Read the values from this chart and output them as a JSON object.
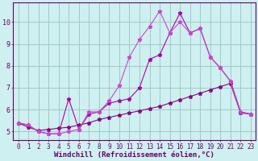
{
  "xlabel": "Windchill (Refroidissement éolien,°C)",
  "bg_color": "#cff0f0",
  "grid_color": "#a0c8c8",
  "line_color_bright": "#cc44cc",
  "line_color_mid": "#aa00aa",
  "line_color_dark": "#880088",
  "xlim": [
    -0.5,
    23.5
  ],
  "ylim": [
    4.6,
    10.9
  ],
  "xticks": [
    0,
    1,
    2,
    3,
    4,
    5,
    6,
    7,
    8,
    9,
    10,
    11,
    12,
    13,
    14,
    15,
    16,
    17,
    18,
    19,
    20,
    21,
    22,
    23
  ],
  "yticks": [
    5,
    6,
    7,
    8,
    9,
    10
  ],
  "series_jagged_x": [
    0,
    1,
    2,
    3,
    4,
    5,
    6,
    7,
    8,
    9,
    10,
    11,
    12,
    13,
    14,
    15,
    16,
    17,
    18,
    19,
    20,
    21,
    22,
    23
  ],
  "series_jagged_y": [
    5.4,
    5.3,
    5.0,
    4.9,
    4.9,
    6.5,
    5.1,
    5.8,
    5.9,
    6.3,
    6.4,
    6.5,
    7.0,
    8.3,
    8.5,
    9.5,
    10.4,
    9.5,
    9.7,
    8.4,
    7.9,
    7.3,
    5.9,
    5.8
  ],
  "series_upper_x": [
    0,
    1,
    2,
    3,
    4,
    5,
    6,
    7,
    8,
    9,
    10,
    11,
    12,
    13,
    14,
    15,
    16,
    17,
    18,
    19,
    20,
    21,
    22,
    23
  ],
  "series_upper_y": [
    5.4,
    5.3,
    5.0,
    4.9,
    4.9,
    5.0,
    5.1,
    5.9,
    5.9,
    6.4,
    7.1,
    8.4,
    9.2,
    9.8,
    10.5,
    9.5,
    10.0,
    9.5,
    9.7,
    8.4,
    7.9,
    7.3,
    5.9,
    5.8
  ],
  "series_lower_x": [
    0,
    1,
    2,
    3,
    4,
    5,
    6,
    7,
    8,
    9,
    10,
    11,
    12,
    13,
    14,
    15,
    16,
    17,
    18,
    19,
    20,
    21,
    22,
    23
  ],
  "series_lower_y": [
    5.4,
    5.2,
    5.05,
    5.1,
    5.15,
    5.2,
    5.3,
    5.4,
    5.55,
    5.65,
    5.75,
    5.85,
    5.95,
    6.05,
    6.15,
    6.3,
    6.45,
    6.6,
    6.75,
    6.9,
    7.05,
    7.2,
    5.85,
    5.8
  ],
  "tick_fontsize": 5.5,
  "label_fontsize": 6.5
}
